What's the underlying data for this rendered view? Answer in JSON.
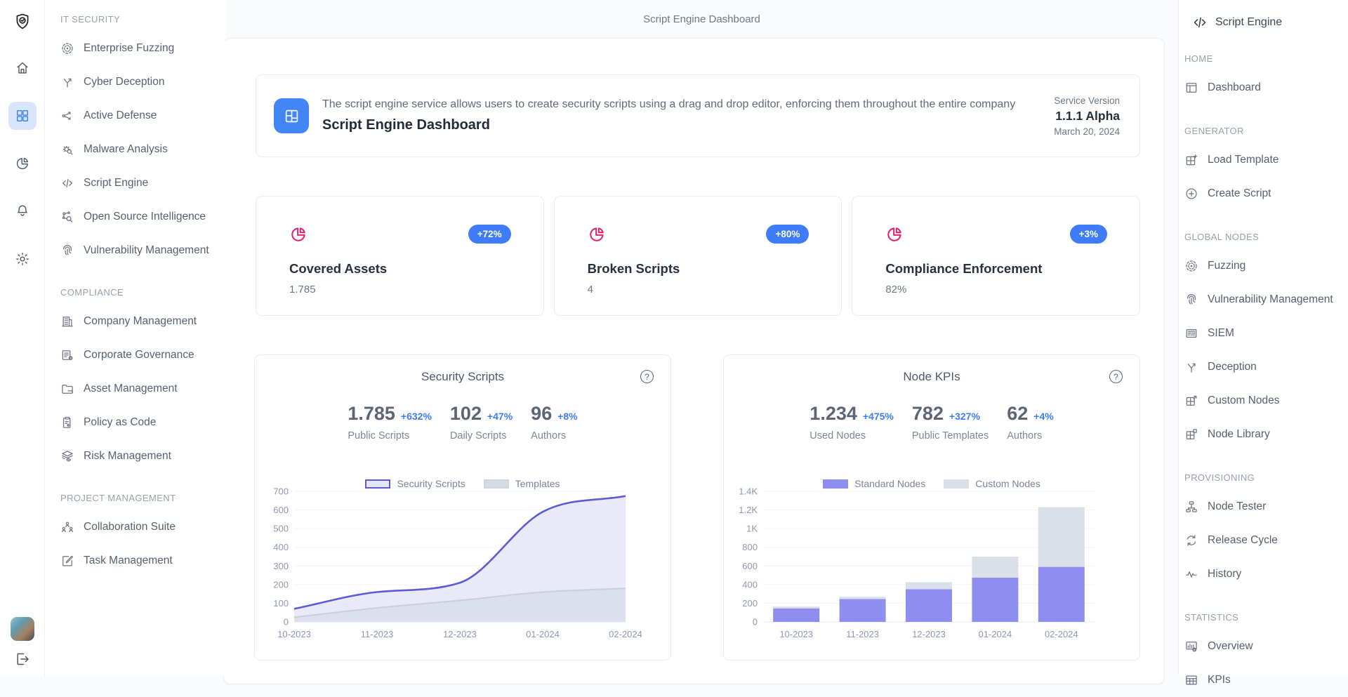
{
  "topbar": {
    "title": "Script Engine Dashboard"
  },
  "rail": {
    "logo_icon": "shield",
    "buttons": [
      {
        "icon": "home",
        "active": false
      },
      {
        "icon": "grid",
        "active": true
      },
      {
        "icon": "pie",
        "active": false
      },
      {
        "icon": "bell",
        "active": false
      },
      {
        "icon": "gear",
        "active": false
      }
    ],
    "avatar": "user-avatar",
    "logout_icon": "logout"
  },
  "left_sidebar": {
    "sections": [
      {
        "title": "IT SECURITY",
        "items": [
          {
            "label": "Enterprise Fuzzing",
            "icon": "fuzzing"
          },
          {
            "label": "Cyber Deception",
            "icon": "deception"
          },
          {
            "label": "Active Defense",
            "icon": "active-defense"
          },
          {
            "label": "Malware Analysis",
            "icon": "malware"
          },
          {
            "label": "Script Engine",
            "icon": "code"
          },
          {
            "label": "Open Source Intelligence",
            "icon": "osint"
          },
          {
            "label": "Vulnerability Management",
            "icon": "fingerprint"
          }
        ]
      },
      {
        "title": "COMPLIANCE",
        "items": [
          {
            "label": "Company Management",
            "icon": "building"
          },
          {
            "label": "Corporate Governance",
            "icon": "governance"
          },
          {
            "label": "Asset Management",
            "icon": "folder"
          },
          {
            "label": "Policy as Code",
            "icon": "clipboard"
          },
          {
            "label": "Risk Management",
            "icon": "layers"
          }
        ]
      },
      {
        "title": "PROJECT MANAGEMENT",
        "items": [
          {
            "label": "Collaboration Suite",
            "icon": "people"
          },
          {
            "label": "Task Management",
            "icon": "task"
          }
        ]
      }
    ]
  },
  "right_sidebar": {
    "title": "Script Engine",
    "title_icon": "code",
    "sections": [
      {
        "title": "HOME",
        "items": [
          {
            "label": "Dashboard",
            "icon": "panel"
          }
        ]
      },
      {
        "title": "GENERATOR",
        "items": [
          {
            "label": "Load Template",
            "icon": "load-template"
          },
          {
            "label": "Create Script",
            "icon": "plus-circle"
          }
        ]
      },
      {
        "title": "GLOBAL NODES",
        "items": [
          {
            "label": "Fuzzing",
            "icon": "fuzzing"
          },
          {
            "label": "Vulnerability Management",
            "icon": "fingerprint"
          },
          {
            "label": "SIEM",
            "icon": "siem"
          },
          {
            "label": "Deception",
            "icon": "deception"
          },
          {
            "label": "Custom Nodes",
            "icon": "custom-nodes"
          },
          {
            "label": "Node Library",
            "icon": "node-library"
          }
        ]
      },
      {
        "title": "PROVISIONING",
        "items": [
          {
            "label": "Node Tester",
            "icon": "node-tester"
          },
          {
            "label": "Release Cycle",
            "icon": "release-cycle"
          },
          {
            "label": "History",
            "icon": "pulse"
          }
        ]
      },
      {
        "title": "STATISTICS",
        "items": [
          {
            "label": "Overview",
            "icon": "overview"
          },
          {
            "label": "KPIs",
            "icon": "table"
          }
        ]
      }
    ]
  },
  "header_card": {
    "icon": "dashboard-tile",
    "description": "The script engine service allows users to create security scripts using a drag and drop editor, enforcing them throughout the entire company",
    "title": "Script Engine Dashboard",
    "service_version_label": "Service Version",
    "version": "1.1.1 Alpha",
    "date": "March 20, 2024"
  },
  "stat_cards": [
    {
      "title": "Covered Assets",
      "value": "1.785",
      "badge": "+72%",
      "icon": "pie"
    },
    {
      "title": "Broken Scripts",
      "value": "4",
      "badge": "+80%",
      "icon": "pie"
    },
    {
      "title": "Compliance Enforcement",
      "value": "82%",
      "badge": "+3%",
      "icon": "pie"
    }
  ],
  "chart_data": [
    {
      "type": "area",
      "title": "Security Scripts",
      "help_icon": "help",
      "stats": [
        {
          "value": "1.785",
          "pct": "+632%",
          "label": "Public Scripts"
        },
        {
          "value": "102",
          "pct": "+47%",
          "label": "Daily Scripts"
        },
        {
          "value": "96",
          "pct": "+8%",
          "label": "Authors"
        }
      ],
      "categories": [
        "10-2023",
        "11-2023",
        "12-2023",
        "01-2024",
        "02-2024"
      ],
      "series": [
        {
          "name": "Security Scripts",
          "values": [
            70,
            160,
            210,
            590,
            675
          ],
          "color": "#5b5bd3",
          "fill": "#e9e9f8",
          "swatch": {
            "fill": "#e6e6f8",
            "border": "#5b5bd3"
          }
        },
        {
          "name": "Templates",
          "values": [
            25,
            75,
            115,
            160,
            180
          ],
          "color": "#c7cfdb",
          "fill": "rgba(199,207,219,0.35)",
          "swatch": {
            "fill": "#d5dbe4",
            "border": "#cdd5e0"
          }
        }
      ],
      "ylim": [
        0,
        700
      ],
      "ytick_step": 100,
      "ytick_labels": [
        "0",
        "100",
        "200",
        "300",
        "400",
        "500",
        "600",
        "700"
      ],
      "grid": true,
      "legend_position": "top"
    },
    {
      "type": "stacked_bar",
      "title": "Node KPIs",
      "help_icon": "help",
      "stats": [
        {
          "value": "1.234",
          "pct": "+475%",
          "label": "Used Nodes"
        },
        {
          "value": "782",
          "pct": "+327%",
          "label": "Public Templates"
        },
        {
          "value": "62",
          "pct": "+4%",
          "label": "Authors"
        }
      ],
      "categories": [
        "10-2023",
        "11-2023",
        "12-2023",
        "01-2024",
        "02-2024"
      ],
      "series": [
        {
          "name": "Standard Nodes",
          "values": [
            145,
            245,
            350,
            475,
            590
          ],
          "color": "#8e8ef0",
          "swatch": {
            "fill": "#8e8ef0",
            "border": "#8e8ef0"
          }
        },
        {
          "name": "Custom Nodes",
          "values": [
            20,
            25,
            75,
            225,
            640
          ],
          "color": "#dae0e9",
          "swatch": {
            "fill": "#dae0e9",
            "border": "#dae0e9"
          }
        }
      ],
      "ylim": [
        0,
        1400
      ],
      "ytick_step": 200,
      "ytick_labels": [
        "0",
        "200",
        "400",
        "600",
        "800",
        "1K",
        "1.2K",
        "1.4K"
      ],
      "grid": true,
      "legend_position": "top"
    }
  ],
  "colors": {
    "accent_blue": "#3e7cfa",
    "pink": "#e1246f",
    "indigo": "#5b5bd3",
    "periwinkle": "#8e8ef0",
    "light_gray_blue": "#dae0e9",
    "active_tile_bg": "#d8e6fd",
    "header_icon_bg": "#4285f4"
  }
}
